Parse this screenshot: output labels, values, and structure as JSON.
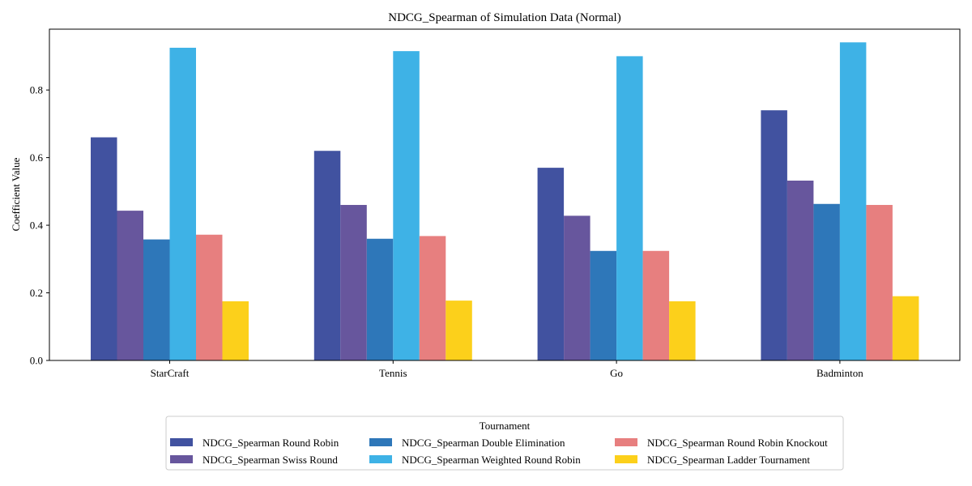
{
  "chart_data": {
    "type": "bar",
    "title": "NDCG_Spearman of Simulation Data (Normal)",
    "xlabel": "",
    "ylabel": "Coefficient Value",
    "ylim": [
      0,
      0.98
    ],
    "yticks": [
      0.0,
      0.2,
      0.4,
      0.6,
      0.8
    ],
    "ytick_labels": [
      "0.0",
      "0.2",
      "0.4",
      "0.6",
      "0.8"
    ],
    "grid": false,
    "categories": [
      "StarCraft",
      "Tennis",
      "Go",
      "Badminton"
    ],
    "series": [
      {
        "name": "NDCG_Spearman Round Robin",
        "color": "#4152a0",
        "values": [
          0.66,
          0.62,
          0.57,
          0.74
        ]
      },
      {
        "name": "NDCG_Spearman Swiss Round",
        "color": "#67569d",
        "values": [
          0.443,
          0.46,
          0.428,
          0.532
        ]
      },
      {
        "name": "NDCG_Spearman Double Elimination",
        "color": "#2e77b9",
        "values": [
          0.358,
          0.36,
          0.324,
          0.463
        ]
      },
      {
        "name": "NDCG_Spearman Weighted Round Robin",
        "color": "#3eb2e6",
        "values": [
          0.925,
          0.915,
          0.9,
          0.941
        ]
      },
      {
        "name": "NDCG_Spearman Round Robin Knockout",
        "color": "#e77f7f",
        "values": [
          0.372,
          0.368,
          0.324,
          0.46
        ]
      },
      {
        "name": "NDCG_Spearman Ladder Tournament",
        "color": "#fcd01b",
        "values": [
          0.175,
          0.177,
          0.175,
          0.19
        ]
      }
    ],
    "legend": {
      "title": "Tournament",
      "placement": "bottom-center",
      "columns": 3
    }
  }
}
